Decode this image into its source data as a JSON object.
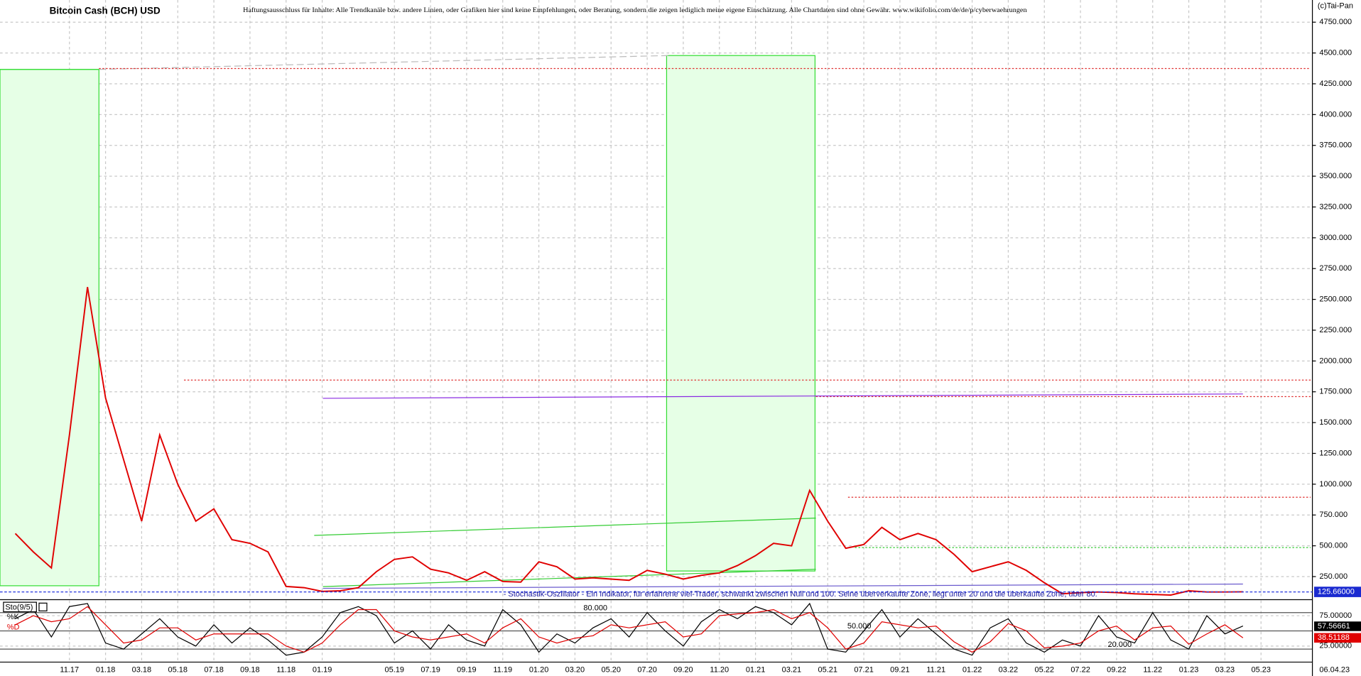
{
  "chart_data": [
    {
      "type": "line",
      "title": "Bitcoin Cash (BCH) USD",
      "subtitle": "Haftungsausschluss für Inhalte: Alle Trendkanäle bzw. andere Linien, oder Grafiken hier sind keine Empfehlungen, oder Beratung, sondern die zeigen lediglich meine eigene Einschätzung. Alle Chartdaten sind ohne Gewähr.  www.wikifolio.com/de/de/p/cyberwaehrungen",
      "source": "(c)Tai-Pan",
      "categories": [
        null,
        null,
        null,
        "11.17",
        null,
        "01.18",
        null,
        "03.18",
        null,
        "05.18",
        null,
        "07.18",
        null,
        "09.18",
        null,
        "11.18",
        null,
        "01.19",
        null,
        null,
        null,
        "05.19",
        null,
        "07.19",
        null,
        "09.19",
        null,
        "11.19",
        null,
        "01.20",
        null,
        "03.20",
        null,
        "05.20",
        null,
        "07.20",
        null,
        "09.20",
        null,
        "11.20",
        null,
        "01.21",
        null,
        "03.21",
        null,
        "05.21",
        null,
        "07.21",
        null,
        "09.21",
        null,
        "11.21",
        null,
        "01.22",
        null,
        "03.22",
        null,
        "05.22",
        null,
        "07.22",
        null,
        "09.22",
        null,
        "11.22",
        null,
        "01.23",
        null,
        "03.23",
        null,
        "05.23"
      ],
      "values": [
        600,
        450,
        320,
        1400,
        2600,
        1700,
        1200,
        700,
        1400,
        1000,
        700,
        800,
        550,
        520,
        450,
        170,
        160,
        130,
        135,
        160,
        290,
        390,
        410,
        310,
        280,
        220,
        290,
        210,
        205,
        370,
        330,
        230,
        240,
        230,
        220,
        300,
        270,
        230,
        260,
        280,
        340,
        420,
        520,
        500,
        950,
        700,
        480,
        510,
        650,
        550,
        600,
        550,
        430,
        290,
        330,
        370,
        300,
        200,
        110,
        120,
        125,
        120,
        110,
        105,
        100,
        135,
        125,
        125,
        126,
        null
      ],
      "color": "#e00000",
      "ylim": [
        70,
        4930
      ],
      "yticks": [
        {
          "value": 250,
          "label": "250.000"
        },
        {
          "value": 500,
          "label": "500.000"
        },
        {
          "value": 750,
          "label": "750.000"
        },
        {
          "value": 1000,
          "label": "1000.000"
        },
        {
          "value": 1250,
          "label": "1250.000"
        },
        {
          "value": 1500,
          "label": "1500.000"
        },
        {
          "value": 1750,
          "label": "1750.000"
        },
        {
          "value": 2000,
          "label": "2000.000"
        },
        {
          "value": 2250,
          "label": "2250.000"
        },
        {
          "value": 2500,
          "label": "2500.000"
        },
        {
          "value": 2750,
          "label": "2750.000"
        },
        {
          "value": 3000,
          "label": "3000.000"
        },
        {
          "value": 3250,
          "label": "3250.000"
        },
        {
          "value": 3500,
          "label": "3500.000"
        },
        {
          "value": 3750,
          "label": "3750.000"
        },
        {
          "value": 4000,
          "label": "4000.000"
        },
        {
          "value": 4250,
          "label": "4250.000"
        },
        {
          "value": 4500,
          "label": "4500.000"
        },
        {
          "value": 4750,
          "label": "4750.000"
        }
      ],
      "grid": true,
      "last_value": {
        "value": 125.66,
        "label": "125.66000"
      },
      "last_date": "06.04.23"
    },
    {
      "type": "line",
      "title": "Sto(9/5)",
      "description": "- Stochastik-Oszillator - Ein Indikator, für erfahrene viel-Trader, schwankt zwischen Null und 100. Seine überverkaufte Zone, liegt unter 20 und die überkaufte Zone, über 80.",
      "series": [
        {
          "name": "%K",
          "color": "#000000",
          "values": [
            70,
            85,
            40,
            90,
            95,
            30,
            20,
            45,
            70,
            40,
            25,
            60,
            30,
            55,
            35,
            10,
            15,
            40,
            80,
            90,
            75,
            30,
            50,
            20,
            60,
            35,
            25,
            85,
            60,
            15,
            45,
            30,
            55,
            70,
            40,
            80,
            50,
            25,
            65,
            85,
            70,
            90,
            80,
            60,
            95,
            20,
            15,
            50,
            85,
            40,
            70,
            45,
            20,
            10,
            55,
            70,
            30,
            15,
            35,
            25,
            75,
            40,
            30,
            80,
            35,
            20,
            75,
            45,
            58,
            null
          ]
        },
        {
          "name": "%D",
          "color": "#e00000",
          "values": [
            60,
            75,
            65,
            70,
            90,
            60,
            30,
            35,
            55,
            55,
            35,
            45,
            45,
            45,
            45,
            25,
            15,
            30,
            60,
            85,
            85,
            50,
            40,
            35,
            40,
            45,
            30,
            55,
            70,
            40,
            30,
            38,
            42,
            60,
            55,
            60,
            65,
            40,
            45,
            75,
            78,
            80,
            85,
            70,
            80,
            55,
            20,
            30,
            65,
            60,
            55,
            58,
            32,
            15,
            32,
            62,
            50,
            22,
            25,
            30,
            50,
            58,
            35,
            55,
            58,
            28,
            45,
            60,
            38.5,
            null
          ]
        }
      ],
      "ylim": [
        0,
        100
      ],
      "yticks": [
        {
          "value": 25,
          "label": "25.00000"
        },
        {
          "value": 75,
          "label": "75.00000"
        }
      ],
      "levels": [
        {
          "value": 80,
          "label": "80.000"
        },
        {
          "value": 50,
          "label": "50.000"
        },
        {
          "value": 20,
          "label": "20.000"
        }
      ],
      "current": [
        {
          "value": 57.56661,
          "label": "57.56661"
        },
        {
          "value": 38.51188,
          "label": "38.51188"
        }
      ]
    }
  ]
}
